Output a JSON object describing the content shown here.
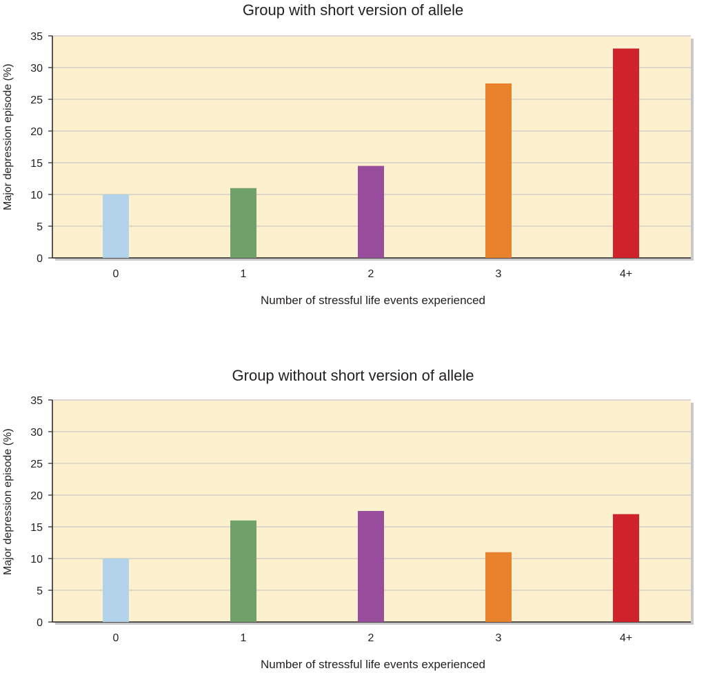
{
  "chart_data": [
    {
      "type": "bar",
      "title": "Group with short version of allele",
      "xlabel": "Number of stressful life events experienced",
      "ylabel": "Major depression episode (%)",
      "categories": [
        "0",
        "1",
        "2",
        "3",
        "4+"
      ],
      "values": [
        10,
        11,
        14.5,
        27.5,
        33
      ],
      "colors": [
        "#b3d3ea",
        "#70a16b",
        "#984e9d",
        "#e9822d",
        "#d0222b"
      ],
      "ylim": [
        0,
        35
      ],
      "yticks": [
        0,
        5,
        10,
        15,
        20,
        25,
        30,
        35
      ],
      "grid": true,
      "background": "#fdf0cf"
    },
    {
      "type": "bar",
      "title": "Group without short version of allele",
      "xlabel": "Number of stressful life events experienced",
      "ylabel": "Major depression episode (%)",
      "categories": [
        "0",
        "1",
        "2",
        "3",
        "4+"
      ],
      "values": [
        10,
        16,
        17.5,
        11,
        17
      ],
      "colors": [
        "#b3d3ea",
        "#70a16b",
        "#984e9d",
        "#e9822d",
        "#d0222b"
      ],
      "ylim": [
        0,
        35
      ],
      "yticks": [
        0,
        5,
        10,
        15,
        20,
        25,
        30,
        35
      ],
      "grid": true,
      "background": "#fdf0cf"
    }
  ]
}
